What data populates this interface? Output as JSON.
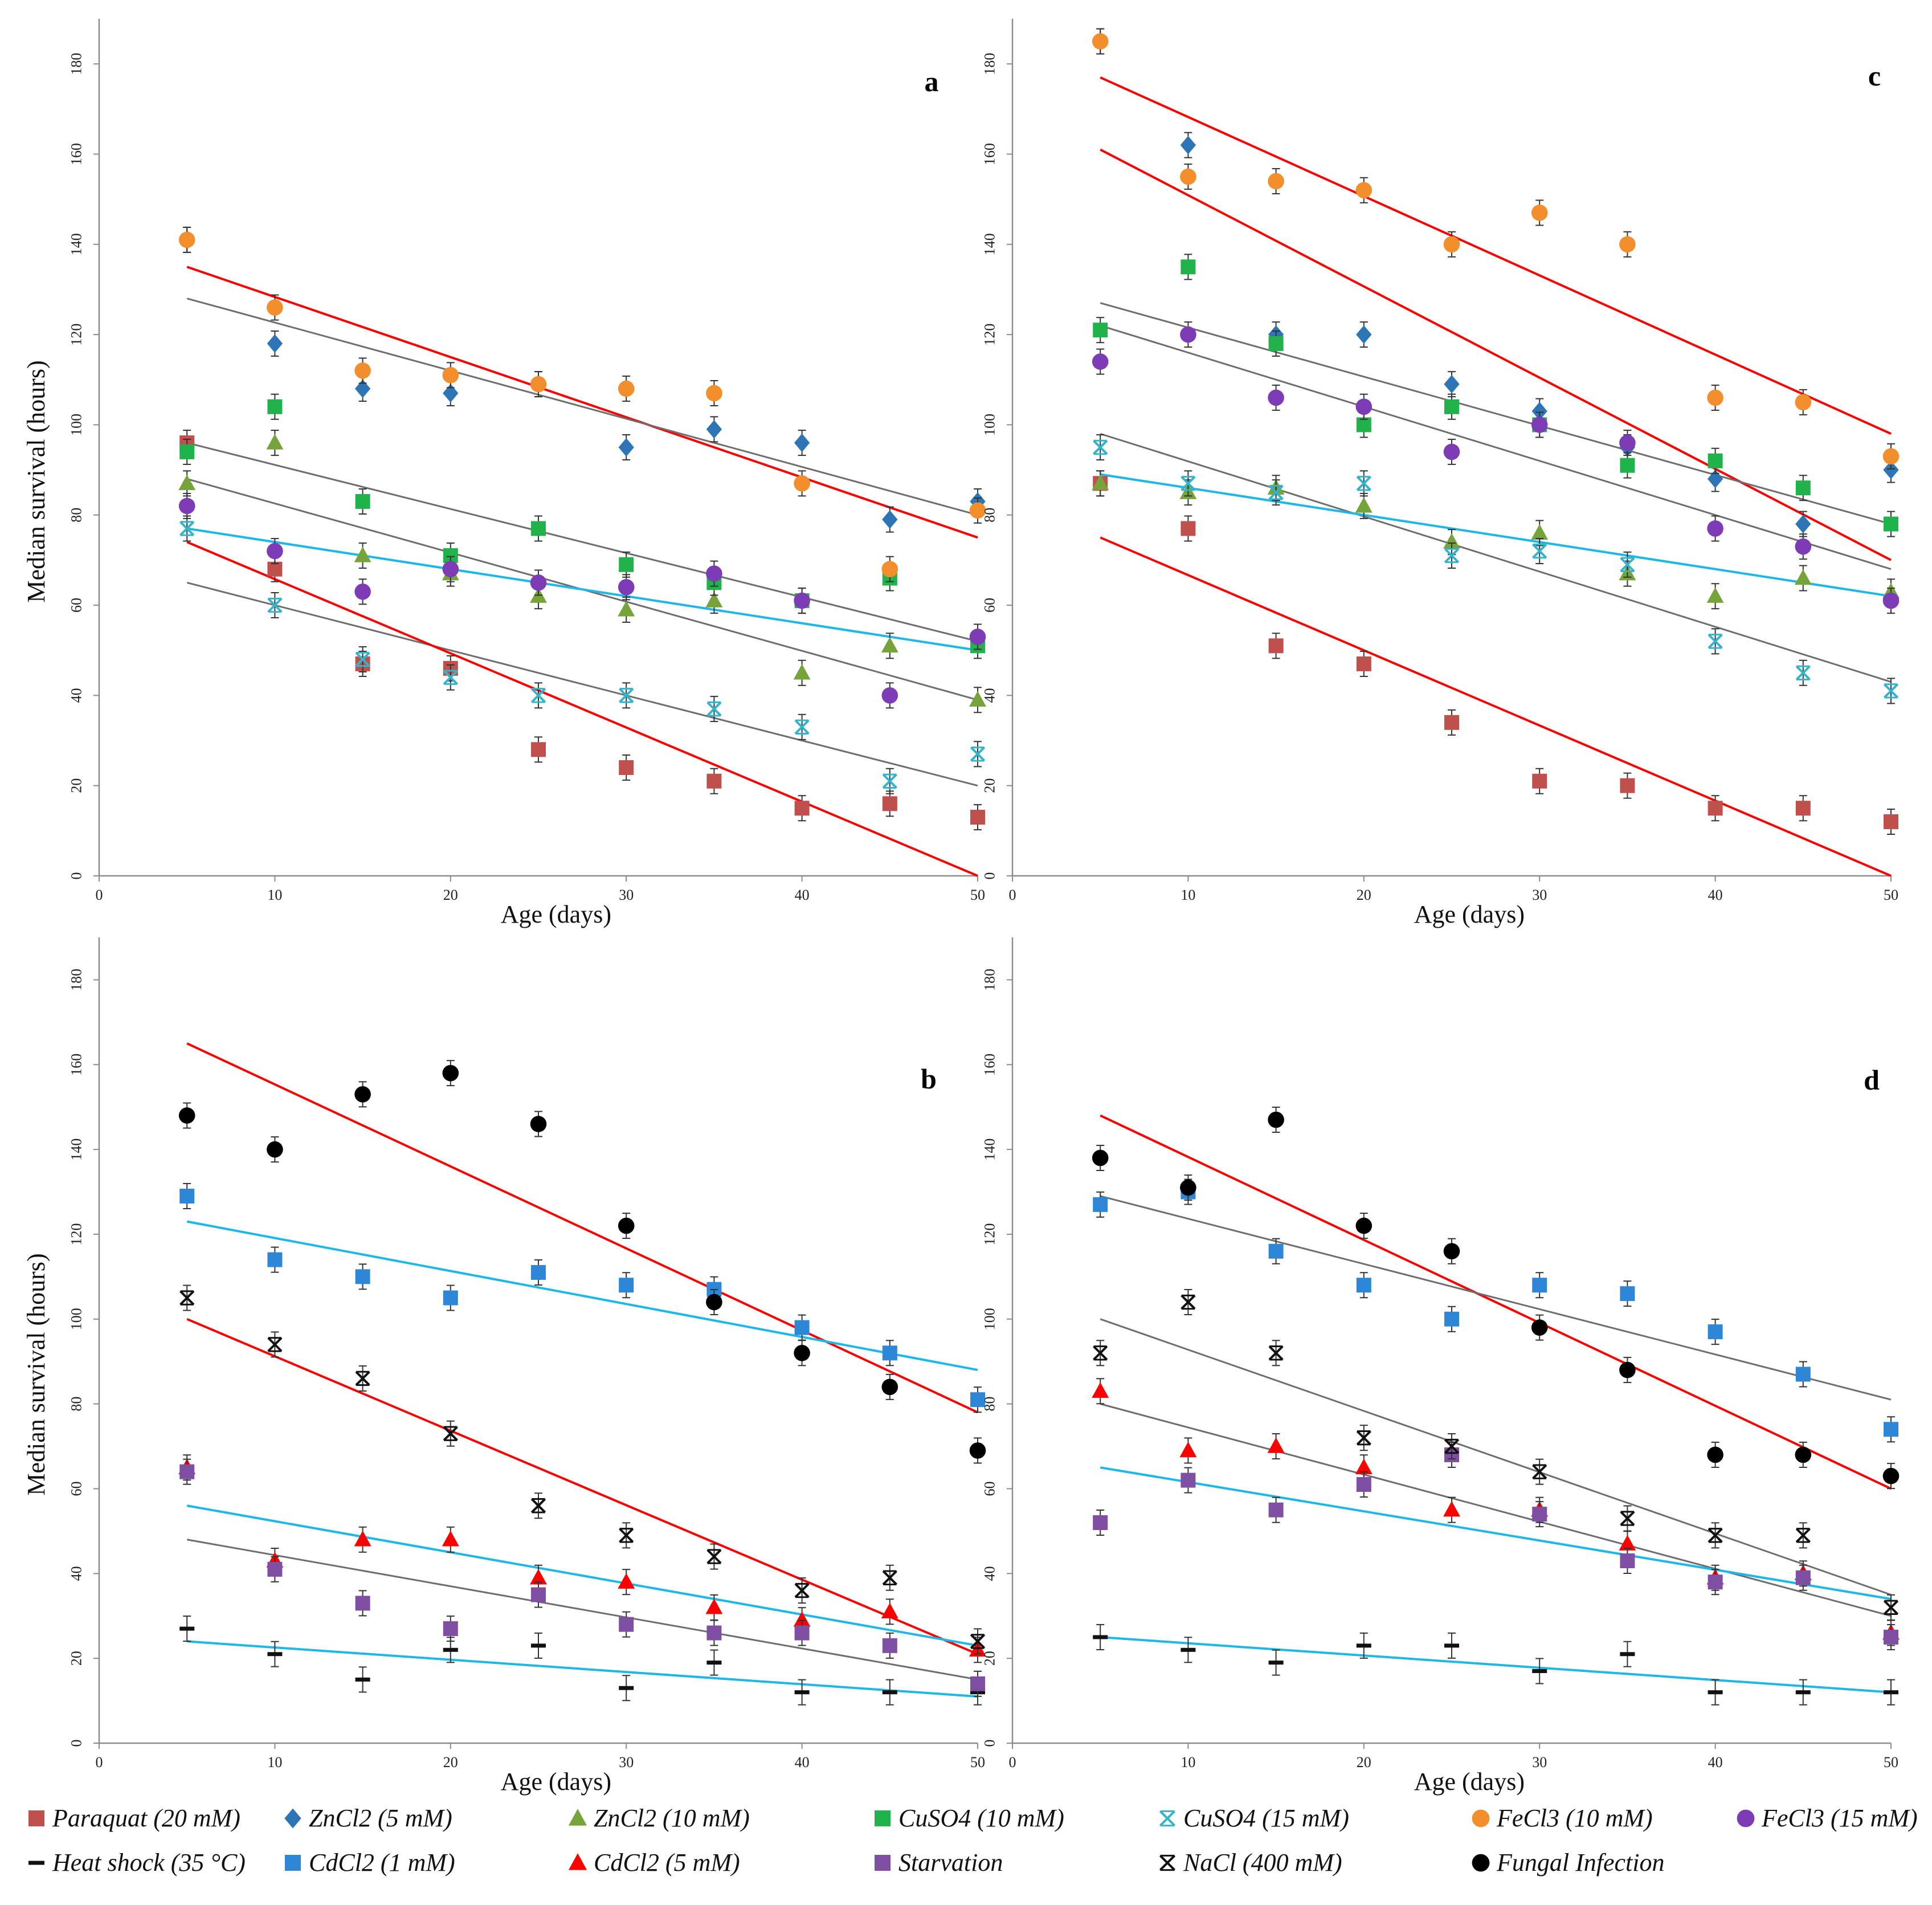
{
  "chart_data": [
    {
      "type": "scatter",
      "panel": "a",
      "xlabel": "Age (days)",
      "ylabel": "Median survival (hours)",
      "xlim": [
        0,
        50
      ],
      "ylim": [
        0,
        190
      ],
      "xticks": [
        0,
        10,
        20,
        30,
        40,
        50
      ],
      "yticks": [
        0,
        20,
        40,
        60,
        80,
        100,
        120,
        140,
        160,
        180
      ],
      "series": [
        {
          "key": "paraquat",
          "x": [
            5,
            10,
            15,
            20,
            25,
            30,
            35,
            40,
            45,
            50
          ],
          "y": [
            96,
            68,
            47,
            46,
            28,
            24,
            21,
            15,
            16,
            13
          ]
        },
        {
          "key": "zncl2_5",
          "x": [
            5,
            10,
            15,
            20,
            25,
            30,
            35,
            40,
            45,
            50
          ],
          "y": [
            141,
            118,
            108,
            107,
            109,
            95,
            99,
            96,
            79,
            83
          ]
        },
        {
          "key": "zncl2_10",
          "x": [
            5,
            10,
            15,
            20,
            25,
            30,
            35,
            40,
            45,
            50
          ],
          "y": [
            87,
            96,
            71,
            67,
            62,
            59,
            61,
            45,
            51,
            39
          ]
        },
        {
          "key": "cuso4_10",
          "x": [
            5,
            10,
            15,
            20,
            25,
            30,
            35,
            40,
            45,
            50
          ],
          "y": [
            94,
            104,
            83,
            71,
            77,
            69,
            65,
            61,
            66,
            51
          ]
        },
        {
          "key": "cuso4_15",
          "x": [
            5,
            10,
            15,
            20,
            25,
            30,
            35,
            40,
            45,
            50
          ],
          "y": [
            77,
            60,
            48,
            44,
            40,
            40,
            37,
            33,
            21,
            27
          ]
        },
        {
          "key": "fecl3_10",
          "x": [
            5,
            10,
            15,
            20,
            25,
            30,
            35,
            40,
            45,
            50
          ],
          "y": [
            141,
            126,
            112,
            111,
            109,
            108,
            107,
            87,
            68,
            81
          ]
        },
        {
          "key": "fecl3_15",
          "x": [
            5,
            10,
            15,
            20,
            25,
            30,
            35,
            40,
            45,
            50
          ],
          "y": [
            82,
            72,
            63,
            68,
            65,
            64,
            67,
            61,
            40,
            53
          ]
        }
      ],
      "trendlines": [
        {
          "color": "red",
          "x": [
            5,
            50
          ],
          "y": [
            135,
            75
          ]
        },
        {
          "color": "gray",
          "x": [
            5,
            50
          ],
          "y": [
            128,
            80
          ]
        },
        {
          "color": "gray",
          "x": [
            5,
            50
          ],
          "y": [
            96,
            52
          ]
        },
        {
          "color": "gray",
          "x": [
            5,
            50
          ],
          "y": [
            88,
            39
          ]
        },
        {
          "color": "cyan",
          "x": [
            5,
            50
          ],
          "y": [
            77,
            50
          ]
        },
        {
          "color": "gray",
          "x": [
            5,
            50
          ],
          "y": [
            65,
            20
          ]
        },
        {
          "color": "red",
          "x": [
            5,
            50
          ],
          "y": [
            74,
            0
          ]
        }
      ]
    },
    {
      "type": "scatter",
      "panel": "c",
      "xlabel": "Age (days)",
      "ylabel": "",
      "xlim": [
        0,
        50
      ],
      "ylim": [
        0,
        190
      ],
      "xticks": [
        0,
        10,
        20,
        30,
        40,
        50
      ],
      "yticks": [
        0,
        20,
        40,
        60,
        80,
        100,
        120,
        140,
        160,
        180
      ],
      "series": [
        {
          "key": "paraquat",
          "x": [
            5,
            10,
            15,
            20,
            25,
            30,
            35,
            40,
            45,
            50
          ],
          "y": [
            87,
            77,
            51,
            47,
            34,
            21,
            20,
            15,
            15,
            12
          ]
        },
        {
          "key": "zncl2_5",
          "x": [
            5,
            10,
            15,
            20,
            25,
            30,
            35,
            40,
            45,
            50
          ],
          "y": [
            185,
            162,
            120,
            120,
            109,
            103,
            95,
            88,
            78,
            90
          ]
        },
        {
          "key": "zncl2_10",
          "x": [
            5,
            10,
            15,
            20,
            25,
            30,
            35,
            40,
            45,
            50
          ],
          "y": [
            87,
            85,
            86,
            82,
            74,
            76,
            67,
            62,
            66,
            63
          ]
        },
        {
          "key": "cuso4_10",
          "x": [
            5,
            10,
            15,
            20,
            25,
            30,
            35,
            40,
            45,
            50
          ],
          "y": [
            121,
            135,
            118,
            100,
            104,
            100,
            91,
            92,
            86,
            78
          ]
        },
        {
          "key": "cuso4_15",
          "x": [
            5,
            10,
            15,
            20,
            25,
            30,
            35,
            40,
            45,
            50
          ],
          "y": [
            95,
            87,
            85,
            87,
            71,
            72,
            69,
            52,
            45,
            41
          ]
        },
        {
          "key": "fecl3_10",
          "x": [
            5,
            10,
            15,
            20,
            25,
            30,
            35,
            40,
            45,
            50
          ],
          "y": [
            185,
            155,
            154,
            152,
            140,
            147,
            140,
            106,
            105,
            93
          ]
        },
        {
          "key": "fecl3_15",
          "x": [
            5,
            10,
            15,
            20,
            25,
            30,
            35,
            40,
            45,
            50
          ],
          "y": [
            114,
            120,
            106,
            104,
            94,
            100,
            96,
            77,
            73,
            61
          ]
        }
      ],
      "trendlines": [
        {
          "color": "red",
          "x": [
            5,
            50
          ],
          "y": [
            177,
            98
          ]
        },
        {
          "color": "red",
          "x": [
            5,
            50
          ],
          "y": [
            161,
            70
          ]
        },
        {
          "color": "gray",
          "x": [
            5,
            50
          ],
          "y": [
            127,
            78
          ]
        },
        {
          "color": "gray",
          "x": [
            5,
            50
          ],
          "y": [
            122,
            68
          ]
        },
        {
          "color": "gray",
          "x": [
            5,
            50
          ],
          "y": [
            98,
            43
          ]
        },
        {
          "color": "cyan",
          "x": [
            5,
            50
          ],
          "y": [
            89,
            62
          ]
        },
        {
          "color": "red",
          "x": [
            5,
            50
          ],
          "y": [
            75,
            0
          ]
        }
      ]
    },
    {
      "type": "scatter",
      "panel": "b",
      "xlabel": "Age (days)",
      "ylabel": "Median survival (hours)",
      "xlim": [
        0,
        50
      ],
      "ylim": [
        0,
        190
      ],
      "xticks": [
        0,
        10,
        20,
        30,
        40,
        50
      ],
      "yticks": [
        0,
        20,
        40,
        60,
        80,
        100,
        120,
        140,
        160,
        180
      ],
      "series": [
        {
          "key": "heat_shock",
          "x": [
            5,
            10,
            15,
            20,
            25,
            30,
            35,
            40,
            45,
            50
          ],
          "y": [
            27,
            21,
            15,
            22,
            23,
            13,
            19,
            12,
            12,
            12
          ]
        },
        {
          "key": "cdcl2_1",
          "x": [
            5,
            10,
            15,
            20,
            25,
            30,
            35,
            40,
            45,
            50
          ],
          "y": [
            129,
            114,
            110,
            105,
            111,
            108,
            107,
            98,
            92,
            81
          ]
        },
        {
          "key": "cdcl2_5",
          "x": [
            5,
            10,
            15,
            20,
            25,
            30,
            35,
            40,
            45,
            50
          ],
          "y": [
            65,
            43,
            48,
            48,
            39,
            38,
            32,
            29,
            31,
            22
          ]
        },
        {
          "key": "starvation",
          "x": [
            5,
            10,
            15,
            20,
            25,
            30,
            35,
            40,
            45,
            50
          ],
          "y": [
            64,
            41,
            33,
            27,
            35,
            28,
            26,
            26,
            23,
            14
          ]
        },
        {
          "key": "nacl",
          "x": [
            5,
            10,
            15,
            20,
            25,
            30,
            35,
            40,
            45,
            50
          ],
          "y": [
            105,
            94,
            86,
            73,
            56,
            49,
            44,
            36,
            39,
            24
          ]
        },
        {
          "key": "fungal",
          "x": [
            5,
            10,
            15,
            20,
            25,
            30,
            35,
            40,
            45,
            50
          ],
          "y": [
            148,
            140,
            153,
            158,
            146,
            122,
            104,
            92,
            84,
            69
          ]
        }
      ],
      "trendlines": [
        {
          "color": "red",
          "x": [
            5,
            50
          ],
          "y": [
            165,
            78
          ]
        },
        {
          "color": "cyan",
          "x": [
            5,
            50
          ],
          "y": [
            123,
            88
          ]
        },
        {
          "color": "red",
          "x": [
            5,
            50
          ],
          "y": [
            100,
            21
          ]
        },
        {
          "color": "cyan",
          "x": [
            5,
            50
          ],
          "y": [
            56,
            23
          ]
        },
        {
          "color": "gray",
          "x": [
            5,
            50
          ],
          "y": [
            48,
            15
          ]
        },
        {
          "color": "cyan",
          "x": [
            5,
            50
          ],
          "y": [
            24,
            11
          ]
        }
      ]
    },
    {
      "type": "scatter",
      "panel": "d",
      "xlabel": "Age (days)",
      "ylabel": "",
      "xlim": [
        0,
        50
      ],
      "ylim": [
        0,
        190
      ],
      "xticks": [
        0,
        10,
        20,
        30,
        40,
        50
      ],
      "yticks": [
        0,
        20,
        40,
        60,
        80,
        100,
        120,
        140,
        160,
        180
      ],
      "series": [
        {
          "key": "heat_shock",
          "x": [
            5,
            10,
            15,
            20,
            25,
            30,
            35,
            40,
            45,
            50
          ],
          "y": [
            25,
            22,
            19,
            23,
            23,
            17,
            21,
            12,
            12,
            12
          ]
        },
        {
          "key": "cdcl2_1",
          "x": [
            5,
            10,
            15,
            20,
            25,
            30,
            35,
            40,
            45,
            50
          ],
          "y": [
            127,
            130,
            116,
            108,
            100,
            108,
            106,
            97,
            87,
            74
          ]
        },
        {
          "key": "cdcl2_5",
          "x": [
            5,
            10,
            15,
            20,
            25,
            30,
            35,
            40,
            45,
            50
          ],
          "y": [
            83,
            69,
            70,
            65,
            55,
            55,
            47,
            39,
            40,
            26
          ]
        },
        {
          "key": "starvation",
          "x": [
            5,
            10,
            15,
            20,
            25,
            30,
            35,
            40,
            45,
            50
          ],
          "y": [
            52,
            62,
            55,
            61,
            68,
            54,
            43,
            38,
            39,
            25
          ]
        },
        {
          "key": "nacl",
          "x": [
            5,
            10,
            15,
            20,
            25,
            30,
            35,
            40,
            45,
            50
          ],
          "y": [
            92,
            104,
            92,
            72,
            70,
            64,
            53,
            49,
            49,
            32
          ]
        },
        {
          "key": "fungal",
          "x": [
            5,
            10,
            15,
            20,
            25,
            30,
            35,
            40,
            45,
            50
          ],
          "y": [
            138,
            131,
            147,
            122,
            116,
            98,
            88,
            68,
            68,
            63
          ]
        }
      ],
      "trendlines": [
        {
          "color": "red",
          "x": [
            5,
            50
          ],
          "y": [
            148,
            60
          ]
        },
        {
          "color": "gray",
          "x": [
            5,
            50
          ],
          "y": [
            129,
            81
          ]
        },
        {
          "color": "gray",
          "x": [
            5,
            50
          ],
          "y": [
            100,
            35
          ]
        },
        {
          "color": "gray",
          "x": [
            5,
            50
          ],
          "y": [
            80,
            30
          ]
        },
        {
          "color": "cyan",
          "x": [
            5,
            50
          ],
          "y": [
            65,
            34
          ]
        },
        {
          "color": "cyan",
          "x": [
            5,
            50
          ],
          "y": [
            25,
            12
          ]
        }
      ]
    }
  ],
  "legend": [
    {
      "key": "paraquat",
      "label": "Paraquat (20 mM)",
      "marker": "square",
      "color": "#c0504d"
    },
    {
      "key": "zncl2_5",
      "label": "ZnCl2 (5 mM)",
      "marker": "diamond",
      "color": "#2e75b6"
    },
    {
      "key": "zncl2_10",
      "label": "ZnCl2 (10 mM)",
      "marker": "triangle",
      "color": "#77a33b"
    },
    {
      "key": "cuso4_10",
      "label": "CuSO4 (10 mM)",
      "marker": "square",
      "color": "#21b24b"
    },
    {
      "key": "cuso4_15",
      "label": "CuSO4 (15 mM)",
      "marker": "xmark",
      "color": "#36b3c8"
    },
    {
      "key": "fecl3_10",
      "label": "FeCl3 (10 mM)",
      "marker": "circle",
      "color": "#f28e2b"
    },
    {
      "key": "fecl3_15",
      "label": "FeCl3 (15 mM)",
      "marker": "circle",
      "color": "#7d3cb5"
    },
    {
      "key": "heat_shock",
      "label": "Heat shock (35 °C)",
      "marker": "dash",
      "color": "#111111"
    },
    {
      "key": "cdcl2_1",
      "label": "CdCl2 (1 mM)",
      "marker": "square",
      "color": "#2e86d6"
    },
    {
      "key": "cdcl2_5",
      "label": "CdCl2 (5 mM)",
      "marker": "triangle",
      "color": "#ff0000"
    },
    {
      "key": "starvation",
      "label": "Starvation",
      "marker": "square",
      "color": "#7f4fa3"
    },
    {
      "key": "nacl",
      "label": "NaCl (400 mM)",
      "marker": "xmark",
      "color": "#111111"
    },
    {
      "key": "fungal",
      "label": "Fungal Infection",
      "marker": "circle",
      "color": "#000000"
    }
  ],
  "trend_colors": {
    "red": "#ff0000",
    "gray": "#6e6e6e",
    "cyan": "#1fb7e6"
  }
}
